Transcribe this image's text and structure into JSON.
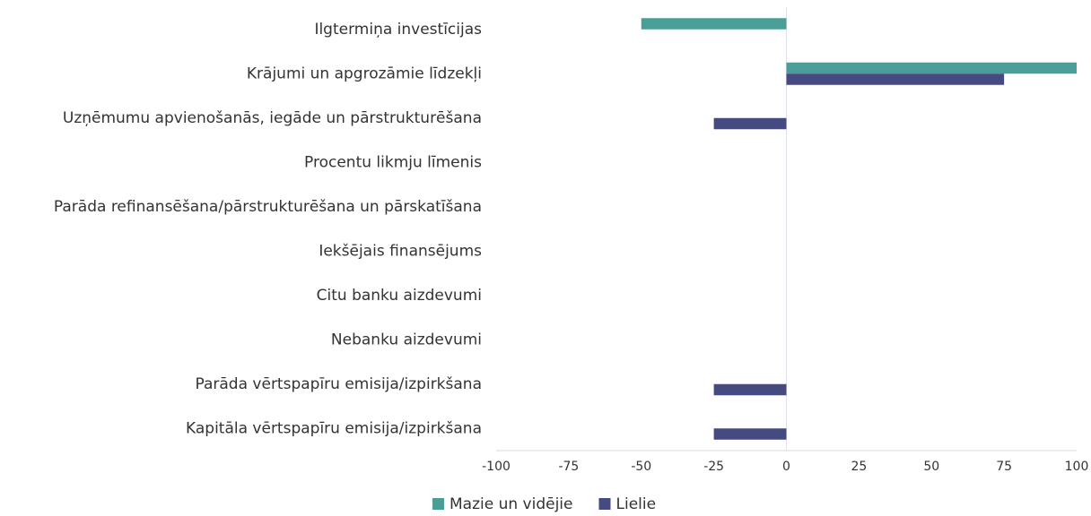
{
  "chart_data": {
    "type": "bar",
    "orientation": "horizontal",
    "categories": [
      "Ilgtermiņa investīcijas",
      "Krājumi un apgrozāmie līdzekļi",
      "Uzņēmumu apvienošanās, iegāde un pārstrukturēšana",
      "Procentu likmju līmenis",
      "Parāda refinansēšana/pārstrukturēšana un pārskatīšana",
      "Iekšējais finansējums",
      "Citu banku aizdevumi",
      "Nebanku aizdevumi",
      "Parāda vērtspapīru emisija/izpirkšana",
      "Kapitāla vērtspapīru emisija/izpirkšana"
    ],
    "series": [
      {
        "name": "Mazie un vidējie",
        "color": "#4a9e98",
        "values": [
          -50,
          100,
          0,
          0,
          0,
          0,
          0,
          0,
          0,
          0
        ]
      },
      {
        "name": "Lielie",
        "color": "#454a80",
        "values": [
          0,
          75,
          -25,
          0,
          0,
          0,
          0,
          0,
          -25,
          -25
        ]
      }
    ],
    "xlim": [
      -100,
      100
    ],
    "xticks": [
      -100,
      -75,
      -50,
      -25,
      0,
      25,
      50,
      75,
      100
    ],
    "legend": "bottom"
  }
}
